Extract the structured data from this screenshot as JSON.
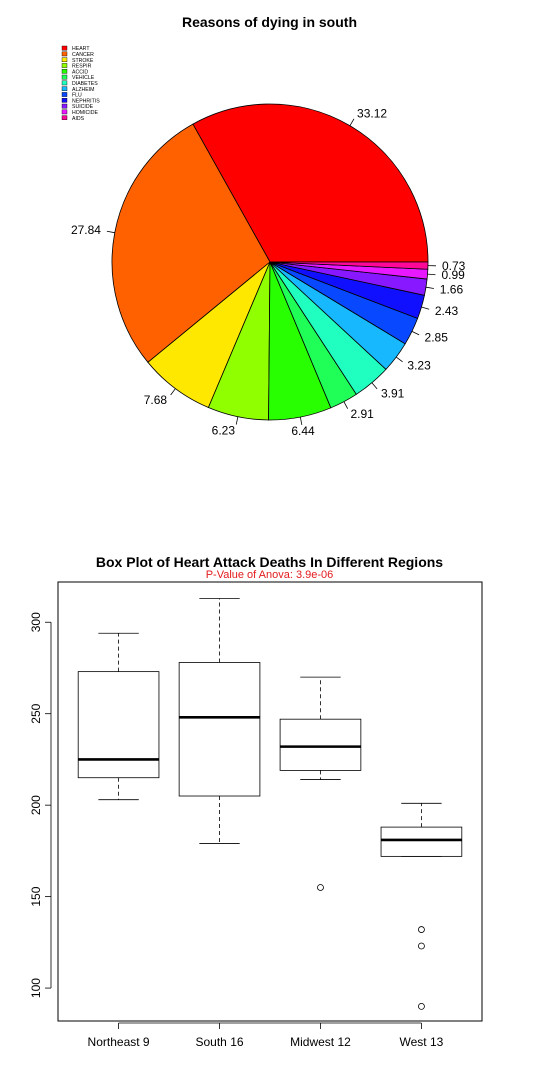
{
  "chart_data": [
    {
      "type": "pie",
      "title": "Reasons of dying in south",
      "legend": {
        "placement": "top-left",
        "labels": [
          "HEART",
          "CANCER",
          "STROKE",
          "RESPIR",
          "ACCID",
          "VEHICLE",
          "DIABETES",
          "ALZHEIM",
          "FLU",
          "NEPHRITIS",
          "SUICIDE",
          "HOMICIDE",
          "AIDS"
        ]
      },
      "slices": [
        {
          "label": "HEART",
          "value": 33.12,
          "color": "#ff0000"
        },
        {
          "label": "CANCER",
          "value": 27.84,
          "color": "#ff6000"
        },
        {
          "label": "STROKE",
          "value": 7.68,
          "color": "#ffe800"
        },
        {
          "label": "RESPIR",
          "value": 6.23,
          "color": "#90ff00"
        },
        {
          "label": "ACCID",
          "value": 6.44,
          "color": "#28ff00"
        },
        {
          "label": "VEHICLE",
          "value": 2.91,
          "color": "#20ff58"
        },
        {
          "label": "DIABETES",
          "value": 3.91,
          "color": "#20ffc0"
        },
        {
          "label": "ALZHEIM",
          "value": 3.23,
          "color": "#18b8ff"
        },
        {
          "label": "FLU",
          "value": 2.85,
          "color": "#0848ff"
        },
        {
          "label": "NEPHRITIS",
          "value": 2.43,
          "color": "#1010ff"
        },
        {
          "label": "SUICIDE",
          "value": 1.66,
          "color": "#8818ff"
        },
        {
          "label": "HOMICIDE",
          "value": 0.99,
          "color": "#e818ff"
        },
        {
          "label": "AIDS",
          "value": 0.73,
          "color": "#ff0898"
        }
      ]
    },
    {
      "type": "box",
      "title": "Box Plot of Heart Attack Deaths In Different Regions",
      "subtitle": "P-Value of Anova: 3.9e-06",
      "subtitle_color": "#e31a1c",
      "ylim": [
        82,
        322
      ],
      "yticks": [
        100,
        150,
        200,
        250,
        300
      ],
      "categories": [
        "Northeast 9",
        "South 16",
        "Midwest 12",
        "West 13"
      ],
      "boxes": [
        {
          "label": "Northeast 9",
          "min": 203,
          "q1": 215,
          "median": 225,
          "q3": 273,
          "max": 294,
          "outliers": []
        },
        {
          "label": "South 16",
          "min": 179,
          "q1": 205,
          "median": 248,
          "q3": 278,
          "max": 313,
          "outliers": []
        },
        {
          "label": "Midwest 12",
          "min": 214,
          "q1": 219,
          "median": 232,
          "q3": 247,
          "max": 270,
          "outliers": [
            155
          ]
        },
        {
          "label": "West 13",
          "min": 172,
          "q1": 172,
          "median": 181,
          "q3": 188,
          "max": 201,
          "outliers": [
            132,
            123,
            90
          ]
        }
      ]
    }
  ]
}
